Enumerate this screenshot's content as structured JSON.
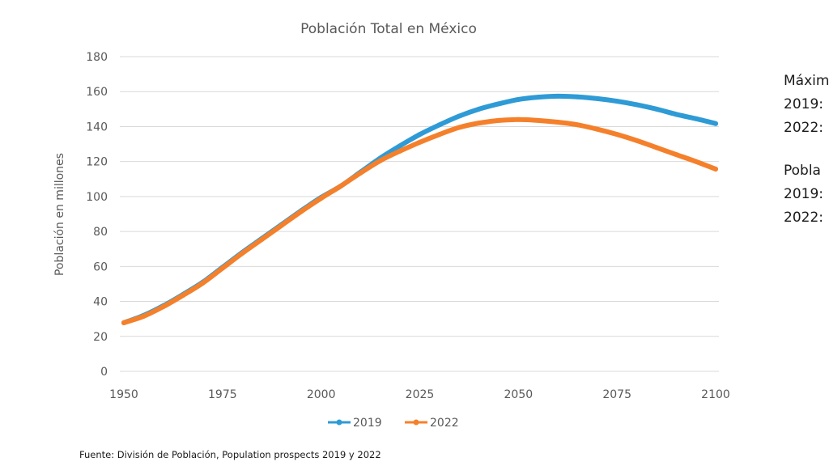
{
  "chart_data": {
    "type": "line",
    "title": "Población Total en México",
    "xlabel": "",
    "ylabel": "Población en millones",
    "xlim": [
      1950,
      2100
    ],
    "ylim": [
      0,
      180
    ],
    "x_ticks": [
      "1950",
      "1975",
      "2000",
      "2025",
      "2050",
      "2075",
      "2100"
    ],
    "y_ticks": [
      "0",
      "20",
      "40",
      "60",
      "80",
      "100",
      "120",
      "140",
      "160",
      "180"
    ],
    "grid": true,
    "legend_position": "bottom",
    "x": [
      1950,
      1955,
      1960,
      1965,
      1970,
      1975,
      1980,
      1985,
      1990,
      1995,
      2000,
      2005,
      2010,
      2015,
      2020,
      2025,
      2030,
      2035,
      2040,
      2045,
      2050,
      2055,
      2060,
      2065,
      2070,
      2075,
      2080,
      2085,
      2090,
      2095,
      2100
    ],
    "series": [
      {
        "name": "2019",
        "color": "#2e9bd6",
        "values": [
          27.8,
          32,
          37.5,
          44,
          51,
          59.5,
          68,
          76,
          84,
          92,
          99.5,
          106,
          114,
          122,
          129,
          135.5,
          141,
          146,
          150,
          153,
          155.5,
          156.8,
          157.4,
          157,
          156,
          154.5,
          152.5,
          150,
          147,
          144.5,
          141.7
        ]
      },
      {
        "name": "2022",
        "color": "#f5802b",
        "values": [
          27.8,
          31.5,
          37,
          43.5,
          50.5,
          59,
          67.5,
          75.5,
          83.5,
          91.5,
          99,
          106,
          113.5,
          120.5,
          126,
          131,
          135.5,
          139.5,
          142,
          143.5,
          144,
          143.5,
          142.5,
          141,
          138.5,
          135.5,
          132,
          128,
          124,
          120,
          115.7
        ]
      }
    ]
  },
  "source": "Fuente: División de Población, Population prospects 2019 y 2022",
  "side_text": {
    "lines_a": [
      "Máxim",
      "2019:",
      "2022:"
    ],
    "lines_b": [
      "Pobla",
      "2019:",
      "2022:"
    ]
  }
}
